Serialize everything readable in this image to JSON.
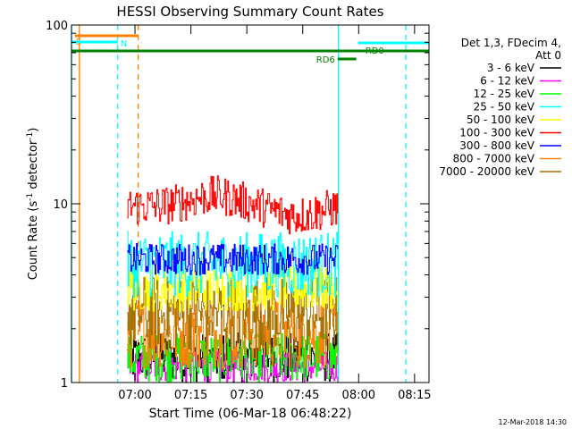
{
  "chart_data": {
    "type": "line",
    "title": "HESSI Observing Summary Count Rates",
    "xlabel": "Start Time (06-Mar-18 06:48:22)",
    "ylabel_main": "Count Rate (s",
    "ylabel_exp1": "-1",
    "ylabel_mid": " detector",
    "ylabel_exp2": "-1",
    "ylabel_end": ")",
    "y_scale": "log",
    "ylim": [
      1,
      100
    ],
    "y_ticks": [
      "1",
      "10",
      "100"
    ],
    "x_range_minutes_from_start": [
      -5.4,
      90.5
    ],
    "x_ticks": [
      {
        "label": "07:00",
        "value": 11.63
      },
      {
        "label": "07:15",
        "value": 26.63
      },
      {
        "label": "07:30",
        "value": 41.63
      },
      {
        "label": "07:45",
        "value": 56.63
      },
      {
        "label": "08:00",
        "value": 71.63
      },
      {
        "label": "08:15",
        "value": 86.63
      }
    ],
    "legend_header": [
      "Det 1,3, FDecim 4,",
      "Att 0"
    ],
    "legend_position": "right",
    "series": [
      {
        "name": "3 - 6 keV",
        "color": "#000000",
        "typical_range": [
          1.0,
          1.9
        ]
      },
      {
        "name": "6 - 12 keV",
        "color": "#ff00ff",
        "typical_range": [
          1.0,
          1.5
        ]
      },
      {
        "name": "12 - 25 keV",
        "color": "#00ff00",
        "typical_range": [
          1.0,
          1.9
        ]
      },
      {
        "name": "25 - 50 keV",
        "color": "#00ffff",
        "typical_range": [
          3.0,
          7.0
        ]
      },
      {
        "name": "50 - 100 keV",
        "color": "#ffff00",
        "typical_range": [
          2.5,
          4.5
        ]
      },
      {
        "name": "100 - 300 keV",
        "color": "#ff0000",
        "typical_range": [
          7.5,
          12.5
        ]
      },
      {
        "name": "300 - 800 keV",
        "color": "#0000ff",
        "typical_range": [
          4.0,
          6.0
        ]
      },
      {
        "name": "800 - 7000 keV",
        "color": "#ff8000",
        "typical_range": [
          1.2,
          3.0
        ]
      },
      {
        "name": "7000 - 20000 keV",
        "color": "#a07000",
        "typical_range": [
          1.5,
          4.0
        ]
      }
    ],
    "data_interval_minutes": [
      9.5,
      66.0
    ],
    "annotations": [
      {
        "label": "S",
        "color": "#ff8000",
        "start": -4.5,
        "end": 12.5
      },
      {
        "label": "N",
        "color": "#00ffff",
        "start": -5.4,
        "end": 7.0
      },
      {
        "label": "RD0",
        "color": "#00ffff",
        "start": 71.5,
        "end": 90.5
      },
      {
        "label": "RD6",
        "color": "#008000",
        "start": 66.0,
        "end": 71.0
      },
      {
        "label": "",
        "color": "#008000",
        "start": -5.4,
        "end": 90.5
      }
    ],
    "interval_markers": [
      {
        "color": "#00ffff",
        "style": "solid",
        "at": -5.4
      },
      {
        "color": "#ff8000",
        "style": "solid",
        "at": -3.3
      },
      {
        "color": "#00ffff",
        "style": "dashed",
        "at": 7.0
      },
      {
        "color": "#ff8000",
        "style": "dashed",
        "at": 12.5
      },
      {
        "color": "#00ffff",
        "style": "solid",
        "at": 66.2
      },
      {
        "color": "#00ffff",
        "style": "dashed",
        "at": 84.3
      }
    ]
  },
  "footer_timestamp": "12-Mar-2018 14:30"
}
